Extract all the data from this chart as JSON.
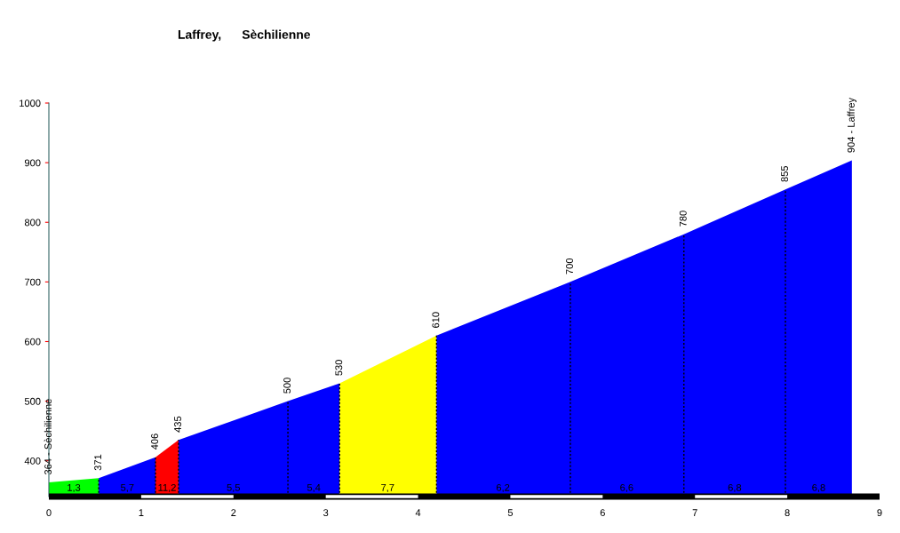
{
  "chart_data": {
    "type": "area",
    "title": "Laffrey,      Sèchilienne",
    "xlim": [
      0,
      9
    ],
    "xticks": [
      0,
      1,
      2,
      3,
      4,
      5,
      6,
      7,
      8,
      9
    ],
    "ylim": [
      340,
      1000
    ],
    "yticks": [
      400,
      500,
      600,
      700,
      800,
      900,
      1000
    ],
    "legend": false,
    "series": [
      {
        "color": "#00ff00",
        "x": [
          0,
          0.54
        ],
        "values": [
          364,
          371
        ]
      },
      {
        "color": "#0000ff",
        "x": [
          0.54,
          1.155
        ],
        "values": [
          371,
          406
        ]
      },
      {
        "color": "#ff0000",
        "x": [
          1.155,
          1.405
        ],
        "values": [
          406,
          435
        ]
      },
      {
        "color": "#0000ff",
        "x": [
          1.405,
          2.59,
          3.15
        ],
        "values": [
          435,
          500,
          530
        ]
      },
      {
        "color": "#ffff00",
        "x": [
          3.15,
          4.2
        ],
        "values": [
          530,
          610
        ]
      },
      {
        "color": "#0000ff",
        "x": [
          4.2,
          5.65,
          6.88,
          7.98,
          8.7
        ],
        "values": [
          610,
          700,
          780,
          855,
          904
        ]
      }
    ],
    "annotations": [
      {
        "text": "364 - Sèchilienne",
        "x": 0,
        "y": 364
      },
      {
        "text": "371",
        "x": 0.54,
        "y": 371
      },
      {
        "text": "406",
        "x": 1.155,
        "y": 406
      },
      {
        "text": "435",
        "x": 1.405,
        "y": 435
      },
      {
        "text": "500",
        "x": 2.59,
        "y": 500
      },
      {
        "text": "530",
        "x": 3.15,
        "y": 530
      },
      {
        "text": "610",
        "x": 4.2,
        "y": 610
      },
      {
        "text": "700",
        "x": 5.65,
        "y": 700
      },
      {
        "text": "780",
        "x": 6.88,
        "y": 780
      },
      {
        "text": "855",
        "x": 7.98,
        "y": 855
      },
      {
        "text": "904 - Laffrey",
        "x": 8.7,
        "y": 904
      },
      {
        "text": "1,3",
        "x": 0.27,
        "y": 346
      },
      {
        "text": "5,7",
        "x": 0.85,
        "y": 346
      },
      {
        "text": "11,2",
        "x": 1.28,
        "y": 346
      },
      {
        "text": "5,5",
        "x": 2.0,
        "y": 346
      },
      {
        "text": "5,4",
        "x": 2.87,
        "y": 346
      },
      {
        "text": "7,7",
        "x": 3.67,
        "y": 346
      },
      {
        "text": "6,2",
        "x": 4.92,
        "y": 346
      },
      {
        "text": "6,6",
        "x": 6.26,
        "y": 346
      },
      {
        "text": "6,8",
        "x": 7.43,
        "y": 346
      },
      {
        "text": "6,8",
        "x": 8.34,
        "y": 346
      }
    ]
  }
}
